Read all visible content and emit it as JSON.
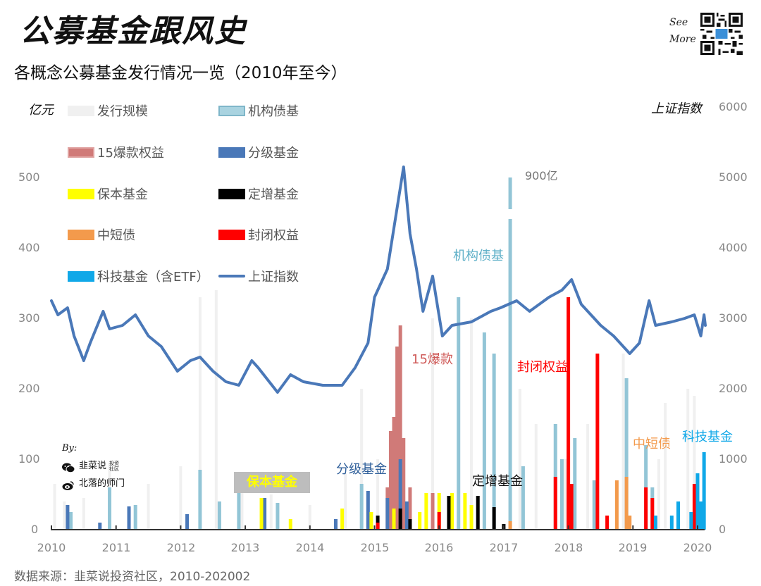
{
  "header": {
    "title": "公募基金跟风史",
    "subtitle": "各概念公募基金发行情况一览（2010年至今）",
    "see_more_line1": "See",
    "see_more_line2": "More"
  },
  "axes": {
    "left_unit": "亿元",
    "right_unit": "上证指数",
    "left_ticks": [
      "0",
      "100",
      "200",
      "300",
      "400",
      "500"
    ],
    "right_ticks": [
      "0",
      "1000",
      "2000",
      "3000",
      "4000",
      "5000",
      "6000"
    ],
    "x_ticks": [
      "2010",
      "2011",
      "2012",
      "2013",
      "2014",
      "2015",
      "2016",
      "2017",
      "2018",
      "2019",
      "2020"
    ]
  },
  "legend": [
    {
      "label": "发行规模",
      "color": "#f0f0f0",
      "type": "bar"
    },
    {
      "label": "机构债基",
      "color": "#92c5d6",
      "type": "bar"
    },
    {
      "label": "15爆款权益",
      "color": "#d07a78",
      "type": "bar"
    },
    {
      "label": "分级基金",
      "color": "#4a78b8",
      "type": "bar"
    },
    {
      "label": "保本基金",
      "color": "#ffff00",
      "type": "bar"
    },
    {
      "label": "定增基金",
      "color": "#000000",
      "type": "bar"
    },
    {
      "label": "中短债",
      "color": "#f39a4c",
      "type": "bar"
    },
    {
      "label": "封闭权益",
      "color": "#ff0000",
      "type": "bar"
    },
    {
      "label": "科技基金（含ETF）",
      "color": "#10a8e8",
      "type": "bar"
    },
    {
      "label": "上证指数",
      "color": "#4a78b8",
      "type": "line"
    }
  ],
  "annotations": {
    "inst_bond": "机构债基",
    "hot15": "15爆款",
    "closed_equity": "封闭权益",
    "structured": "分级基金",
    "guaranteed": "保本基金",
    "private_placement": "定增基金",
    "short_bond": "中短债",
    "tech": "科技基金",
    "cap_900": "900亿"
  },
  "credits": {
    "by": "By:",
    "wechat": "韭菜说",
    "wechat_tag": "投资社区",
    "weibo": "北落的师门"
  },
  "footer": {
    "source": "数据来源：韭菜说投资社区，2010-202002"
  },
  "chart_data": {
    "type": "bar",
    "title": "各概念公募基金发行情况一览（2010年至今）",
    "xlabel": "",
    "ylabel": "亿元",
    "y2label": "上证指数",
    "ylim": [
      0,
      600
    ],
    "y2lim": [
      0,
      6000
    ],
    "x_range": [
      2010,
      2020.17
    ],
    "legend_position": "top-left",
    "grid": false,
    "series": [
      {
        "name": "机构债基",
        "color": "#92c5d6",
        "points": [
          [
            2010.3,
            25
          ],
          [
            2010.9,
            60
          ],
          [
            2011.3,
            35
          ],
          [
            2012.3,
            85
          ],
          [
            2012.6,
            40
          ],
          [
            2012.9,
            55
          ],
          [
            2013.5,
            38
          ],
          [
            2014.8,
            65
          ],
          [
            2015.9,
            30
          ],
          [
            2016.3,
            330
          ],
          [
            2016.7,
            280
          ],
          [
            2016.85,
            250
          ],
          [
            2017.1,
            900
          ],
          [
            2017.3,
            90
          ],
          [
            2017.8,
            150
          ],
          [
            2017.9,
            100
          ],
          [
            2018.1,
            130
          ],
          [
            2018.4,
            70
          ],
          [
            2018.9,
            215
          ],
          [
            2019.2,
            120
          ],
          [
            2019.3,
            60
          ]
        ]
      },
      {
        "name": "15爆款权益",
        "color": "#d07a78",
        "points": [
          [
            2015.2,
            60
          ],
          [
            2015.25,
            140
          ],
          [
            2015.3,
            160
          ],
          [
            2015.35,
            260
          ],
          [
            2015.4,
            290
          ],
          [
            2015.45,
            130
          ],
          [
            2015.55,
            60
          ],
          [
            2015.9,
            52
          ]
        ]
      },
      {
        "name": "分级基金",
        "color": "#4a78b8",
        "points": [
          [
            2010.25,
            35
          ],
          [
            2010.75,
            10
          ],
          [
            2011.2,
            33
          ],
          [
            2012.1,
            22
          ],
          [
            2013.3,
            45
          ],
          [
            2014.4,
            15
          ],
          [
            2014.9,
            55
          ],
          [
            2015.2,
            45
          ],
          [
            2015.4,
            100
          ],
          [
            2015.5,
            40
          ]
        ]
      },
      {
        "name": "保本基金",
        "color": "#ffff00",
        "points": [
          [
            2013.25,
            45
          ],
          [
            2013.7,
            15
          ],
          [
            2014.5,
            30
          ],
          [
            2014.95,
            25
          ],
          [
            2015.3,
            30
          ],
          [
            2015.7,
            25
          ],
          [
            2015.8,
            52
          ],
          [
            2016.0,
            52
          ],
          [
            2016.2,
            52
          ],
          [
            2016.4,
            52
          ],
          [
            2016.5,
            35
          ]
        ]
      },
      {
        "name": "定增基金",
        "color": "#000000",
        "points": [
          [
            2015.05,
            20
          ],
          [
            2015.4,
            30
          ],
          [
            2015.55,
            15
          ],
          [
            2016.15,
            48
          ],
          [
            2016.6,
            48
          ],
          [
            2016.85,
            32
          ],
          [
            2017.0,
            8
          ]
        ]
      },
      {
        "name": "中短债",
        "color": "#f39a4c",
        "points": [
          [
            2017.1,
            12
          ],
          [
            2018.75,
            70
          ],
          [
            2018.9,
            75
          ],
          [
            2018.95,
            20
          ]
        ]
      },
      {
        "name": "封闭权益",
        "color": "#ff0000",
        "points": [
          [
            2015.05,
            10
          ],
          [
            2016.0,
            25
          ],
          [
            2017.8,
            75
          ],
          [
            2018.0,
            330
          ],
          [
            2018.05,
            65
          ],
          [
            2018.45,
            250
          ],
          [
            2018.6,
            20
          ],
          [
            2019.2,
            60
          ],
          [
            2019.3,
            45
          ],
          [
            2019.7,
            30
          ],
          [
            2019.95,
            65
          ]
        ]
      },
      {
        "name": "科技基金（含ETF）",
        "color": "#10a8e8",
        "points": [
          [
            2019.35,
            20
          ],
          [
            2019.6,
            20
          ],
          [
            2019.7,
            40
          ],
          [
            2019.9,
            25
          ],
          [
            2020.0,
            80
          ],
          [
            2020.05,
            40
          ],
          [
            2020.1,
            110
          ]
        ]
      }
    ],
    "line_series": {
      "name": "上证指数",
      "axis": "right",
      "points": [
        [
          2010.0,
          3250
        ],
        [
          2010.1,
          3050
        ],
        [
          2010.25,
          3150
        ],
        [
          2010.35,
          2750
        ],
        [
          2010.5,
          2400
        ],
        [
          2010.6,
          2650
        ],
        [
          2010.8,
          3100
        ],
        [
          2010.9,
          2850
        ],
        [
          2011.1,
          2900
        ],
        [
          2011.3,
          3050
        ],
        [
          2011.5,
          2750
        ],
        [
          2011.7,
          2600
        ],
        [
          2011.95,
          2250
        ],
        [
          2012.15,
          2400
        ],
        [
          2012.3,
          2450
        ],
        [
          2012.5,
          2250
        ],
        [
          2012.7,
          2100
        ],
        [
          2012.9,
          2050
        ],
        [
          2013.1,
          2400
        ],
        [
          2013.2,
          2300
        ],
        [
          2013.5,
          1950
        ],
        [
          2013.7,
          2200
        ],
        [
          2013.9,
          2100
        ],
        [
          2014.2,
          2050
        ],
        [
          2014.5,
          2050
        ],
        [
          2014.7,
          2300
        ],
        [
          2014.9,
          2650
        ],
        [
          2015.0,
          3300
        ],
        [
          2015.2,
          3700
        ],
        [
          2015.45,
          5150
        ],
        [
          2015.55,
          4200
        ],
        [
          2015.65,
          3700
        ],
        [
          2015.75,
          3100
        ],
        [
          2015.9,
          3600
        ],
        [
          2016.05,
          2750
        ],
        [
          2016.2,
          2900
        ],
        [
          2016.5,
          2950
        ],
        [
          2016.8,
          3100
        ],
        [
          2016.95,
          3150
        ],
        [
          2017.2,
          3250
        ],
        [
          2017.4,
          3100
        ],
        [
          2017.7,
          3300
        ],
        [
          2017.9,
          3400
        ],
        [
          2018.05,
          3550
        ],
        [
          2018.2,
          3200
        ],
        [
          2018.5,
          2900
        ],
        [
          2018.7,
          2750
        ],
        [
          2018.95,
          2500
        ],
        [
          2019.1,
          2650
        ],
        [
          2019.25,
          3250
        ],
        [
          2019.35,
          2900
        ],
        [
          2019.6,
          2950
        ],
        [
          2019.8,
          3000
        ],
        [
          2019.95,
          3050
        ],
        [
          2020.05,
          2750
        ],
        [
          2020.1,
          3050
        ],
        [
          2020.12,
          2900
        ]
      ]
    },
    "volume_background": {
      "name": "发行规模",
      "color": "#f0f0f0",
      "points": [
        [
          2010.05,
          65
        ],
        [
          2010.2,
          40
        ],
        [
          2010.5,
          45
        ],
        [
          2010.9,
          95
        ],
        [
          2011.5,
          65
        ],
        [
          2012.0,
          90
        ],
        [
          2012.3,
          330
        ],
        [
          2012.55,
          340
        ],
        [
          2012.95,
          80
        ],
        [
          2013.4,
          50
        ],
        [
          2014.0,
          35
        ],
        [
          2014.55,
          80
        ],
        [
          2014.8,
          200
        ],
        [
          2015.05,
          100
        ],
        [
          2015.9,
          300
        ],
        [
          2016.5,
          300
        ],
        [
          2017.25,
          200
        ],
        [
          2017.5,
          150
        ],
        [
          2017.95,
          100
        ],
        [
          2018.3,
          150
        ],
        [
          2018.85,
          250
        ],
        [
          2019.4,
          100
        ],
        [
          2019.5,
          180
        ],
        [
          2019.85,
          200
        ],
        [
          2019.95,
          190
        ]
      ]
    }
  }
}
